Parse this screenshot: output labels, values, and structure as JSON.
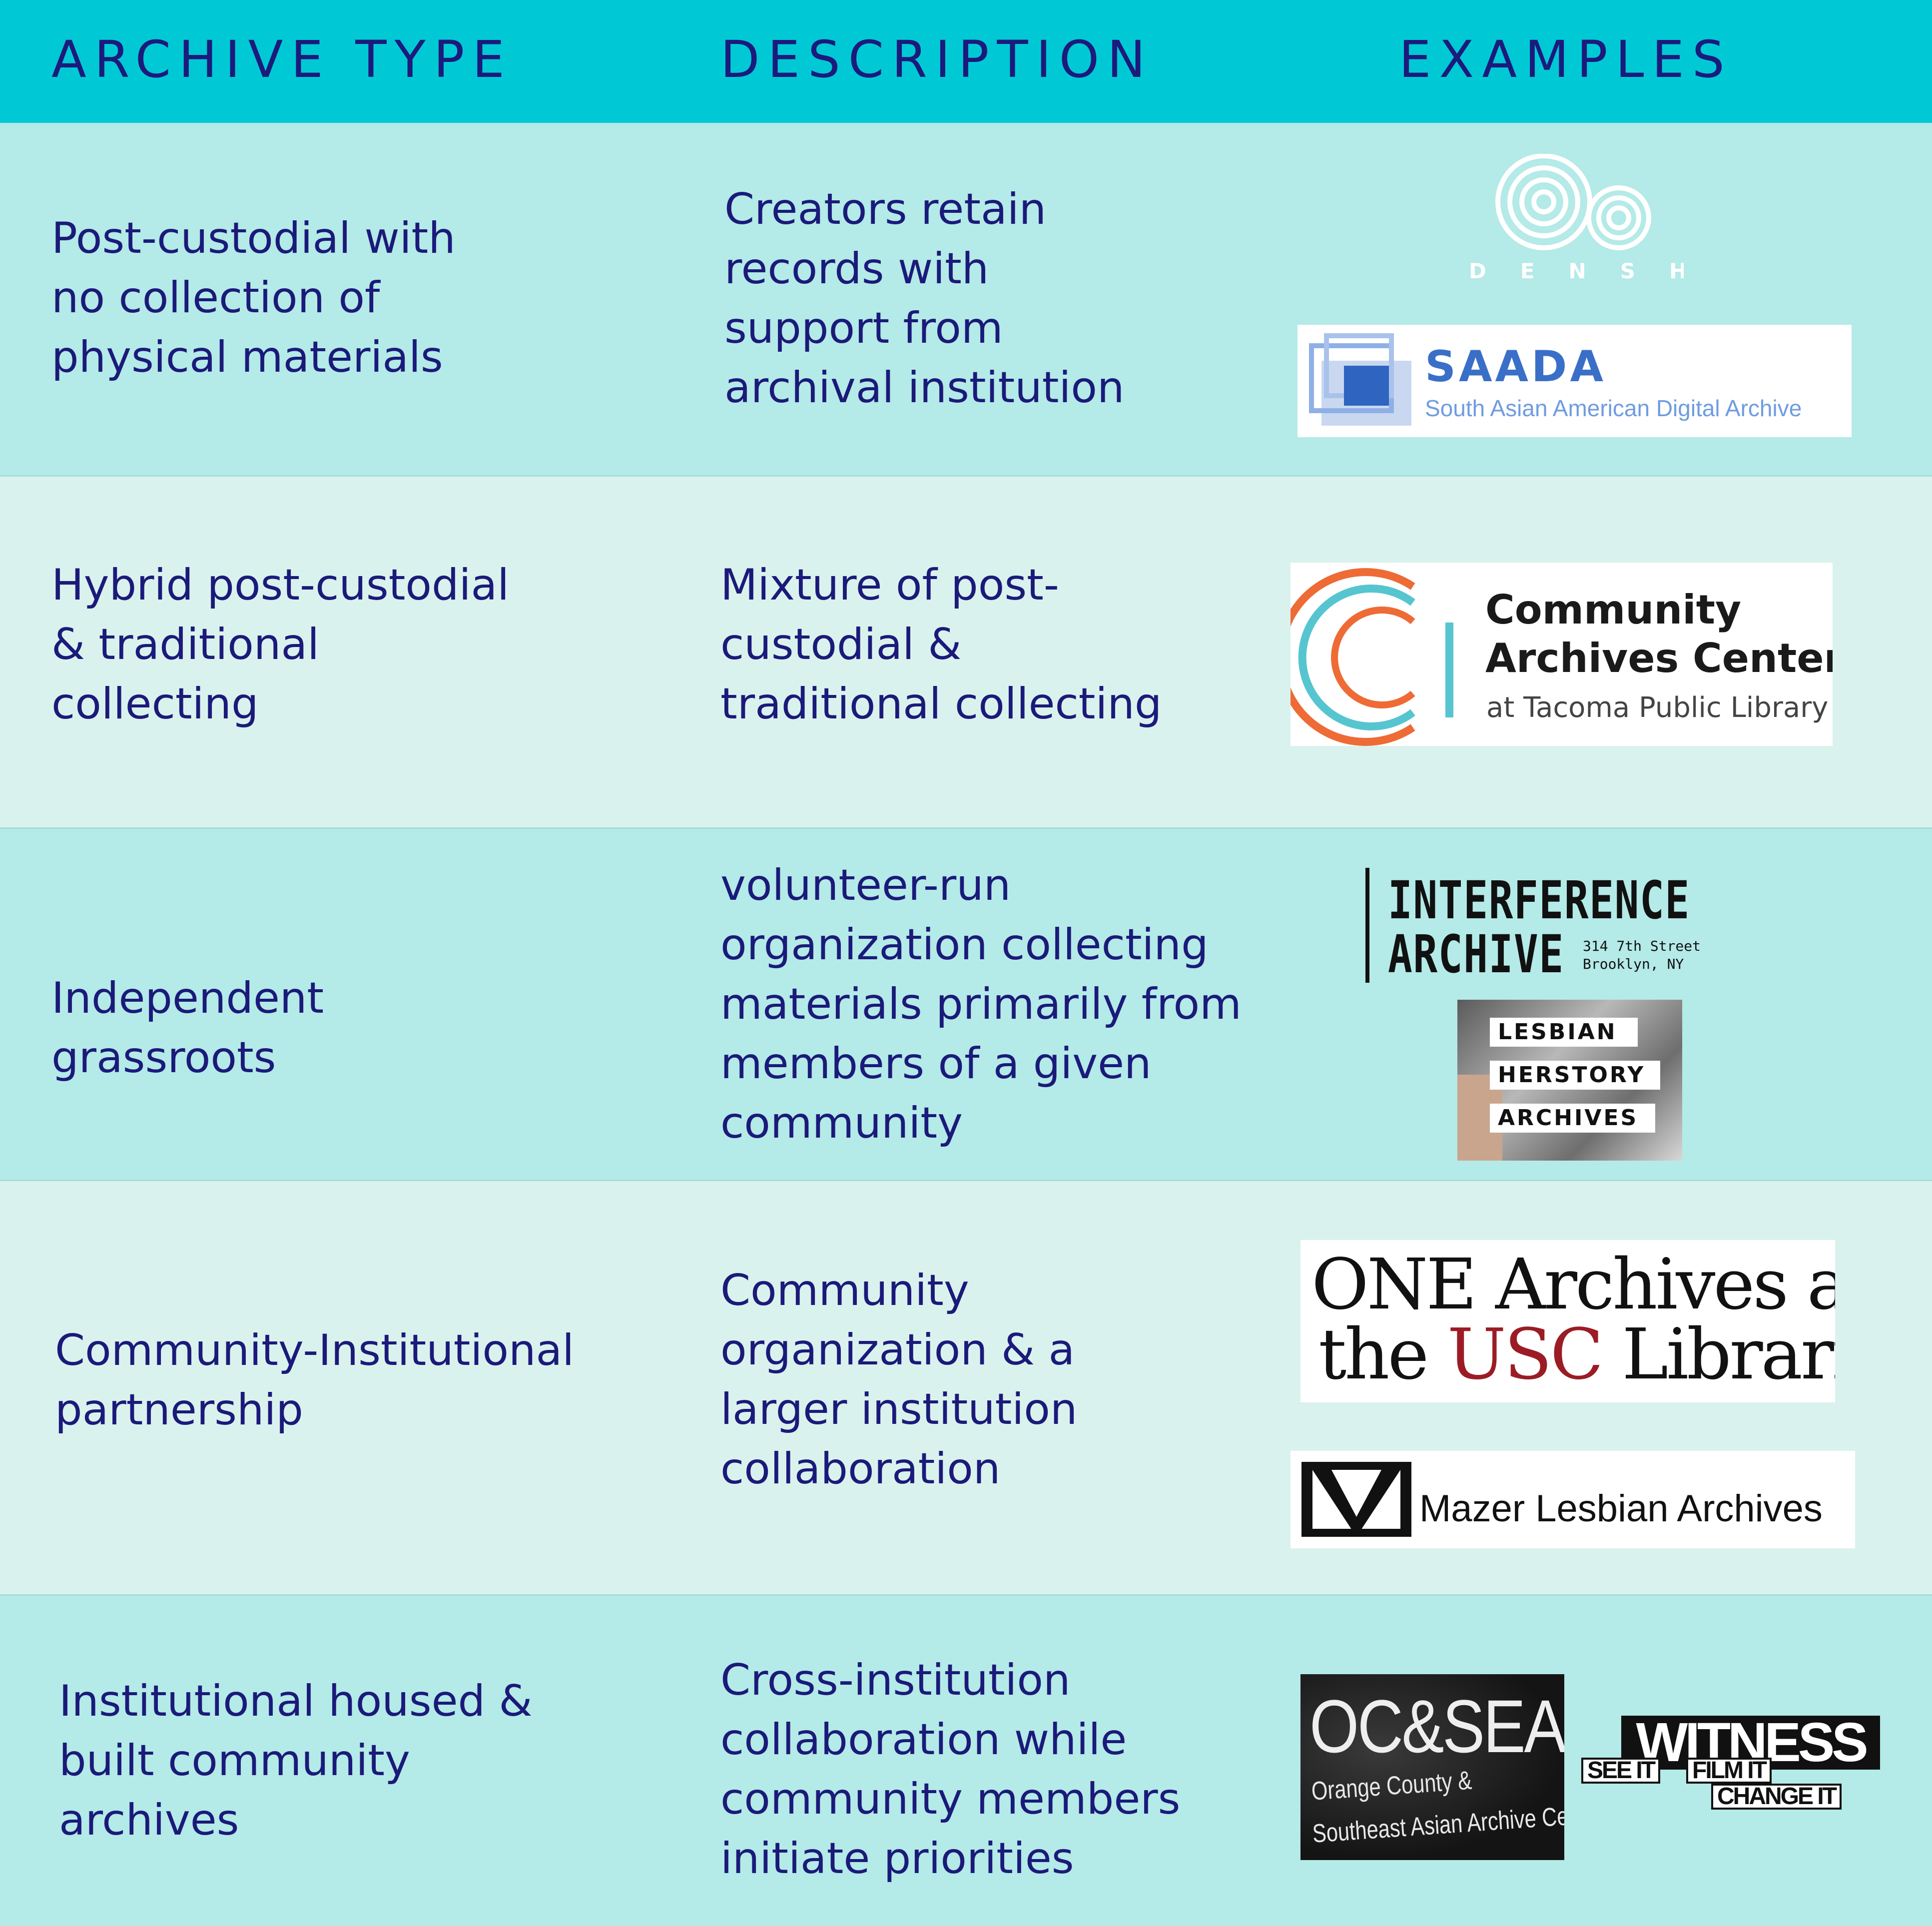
{
  "header": {
    "col1": "ARCHIVE TYPE",
    "col2": "DESCRIPTION",
    "col3": "EXAMPLES"
  },
  "rows": [
    {
      "type": "Post-custodial with\nno collection of\nphysical materials",
      "description": "Creators retain\nrecords with\nsupport from\narchival institution"
    },
    {
      "type": "Hybrid post-custodial\n& traditional\ncollecting",
      "description": "Mixture of post-\ncustodial &\ntraditional collecting"
    },
    {
      "type": "Independent\ngrassroots",
      "description": "volunteer-run\norganization collecting\nmaterials primarily from\nmembers of a given\ncommunity"
    },
    {
      "type": "Community-Institutional\npartnership",
      "description": "Community\norganization & a\nlarger institution\ncollaboration"
    },
    {
      "type": "Institutional housed &\nbuilt community\narchives",
      "description": "Cross-institution\ncollaboration while\ncommunity members\ninitiate priorities"
    }
  ],
  "logos": {
    "densho": {
      "word": "DENSHŌ"
    },
    "saada": {
      "title": "SAADA",
      "subtitle": "South Asian American Digital Archive"
    },
    "cac": {
      "line1": "Community",
      "line2": "Archives Center",
      "line3": "at Tacoma Public Library"
    },
    "interference": {
      "line1": "INTERFERENCE",
      "line2": "ARCHIVE",
      "addr1": "314 7th Street",
      "addr2": "Brooklyn, NY"
    },
    "lha": {
      "line1": "LESBIAN",
      "line2": "HERSTORY",
      "line3": "ARCHIVES"
    },
    "one": {
      "line1": "ONE Archives at",
      "line2_a": "the ",
      "line2_usc": "USC",
      "line2_b": " Libraries"
    },
    "mazer": {
      "text": "Mazer Lesbian Archives"
    },
    "ocseaa": {
      "big": "OC&SEAA",
      "sub1": "Orange County &",
      "sub2": "Southeast Asian Archive Center"
    },
    "witness": {
      "big": "WITNESS",
      "see": "SEE IT",
      "film": "FILM IT",
      "change": "CHANGE IT"
    }
  },
  "colors": {
    "header_bg": "#00c9d5",
    "row_dark": "#b4eae7",
    "row_light": "#daf2ed",
    "text": "#1b1a7a",
    "usc_red": "#9b1c25"
  }
}
